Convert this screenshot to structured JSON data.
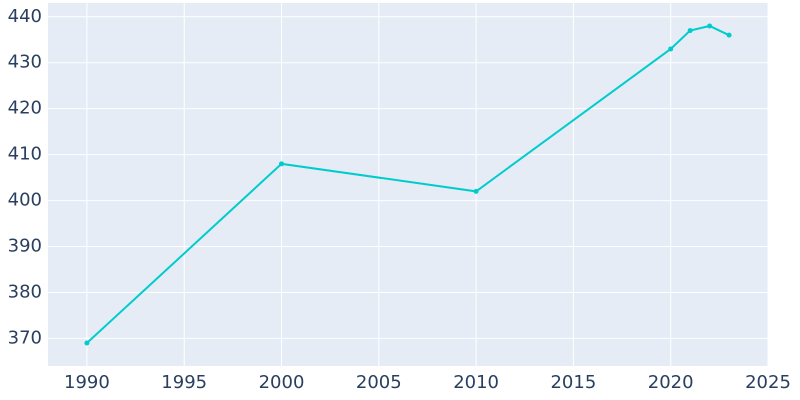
{
  "chart_data": {
    "type": "line",
    "x": [
      1990,
      2000,
      2010,
      2020,
      2021,
      2022,
      2023
    ],
    "series": [
      {
        "color": "#00cccc",
        "values": [
          369,
          408,
          402,
          433,
          437,
          438,
          436
        ]
      }
    ],
    "xlim": [
      1988,
      2025
    ],
    "xticks": [
      1990,
      1995,
      2000,
      2005,
      2010,
      2015,
      2020,
      2025
    ],
    "ylim": [
      364,
      443
    ],
    "yticks": [
      370,
      380,
      390,
      400,
      410,
      420,
      430,
      440
    ],
    "grid": true
  }
}
